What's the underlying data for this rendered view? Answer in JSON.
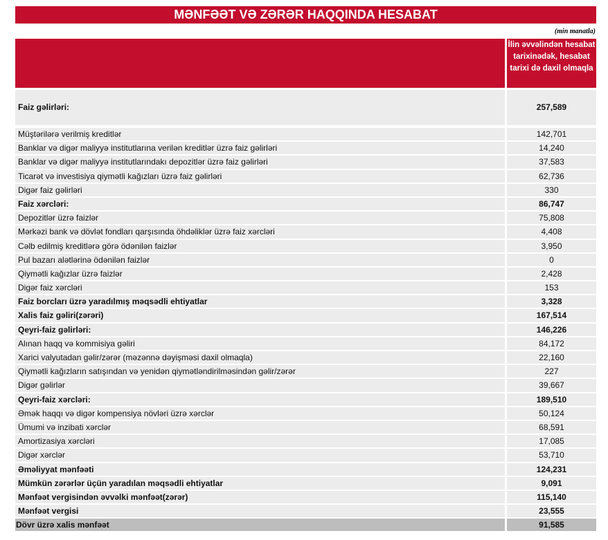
{
  "title": "MƏNFƏƏT VƏ ZƏRƏR HAQQINDA HESABAT",
  "unit": "(min manatla)",
  "column_header": "İlin əvvəlindən hesabat tarixinədək, hesabat tarixi də daxil olmaqla",
  "rows": [
    {
      "label": "Faiz gəlirləri:",
      "value": "257,589",
      "bold": true
    },
    {
      "label": "Müştərilərə verilmiş kreditlər",
      "value": "142,701",
      "bold": false
    },
    {
      "label": "Banklar və digər maliyyə institutlarına verilən kreditlər üzrə faiz gəlirləri",
      "value": "14,240",
      "bold": false
    },
    {
      "label": "Banklar və digər maliyyə institutlarındakı depozitlər üzrə faiz gəlirləri",
      "value": "37,583",
      "bold": false
    },
    {
      "label": "Ticarət və investisiya qiymətli kağızları üzrə faiz gəlirləri",
      "value": "62,736",
      "bold": false
    },
    {
      "label": "Digər faiz gəlirləri",
      "value": "330",
      "bold": false
    },
    {
      "label": "Faiz xərcləri:",
      "value": "86,747",
      "bold": true
    },
    {
      "label": "Depozitlər üzrə faizlər",
      "value": "75,808",
      "bold": false
    },
    {
      "label": "Mərkəzi bank və dövlət fondları qarşısında öhdəliklər üzrə faiz xərcləri",
      "value": "4,408",
      "bold": false
    },
    {
      "label": "Cəlb edilmiş kreditlərə görə ödənilən faizlər",
      "value": "3,950",
      "bold": false
    },
    {
      "label": "Pul bazarı alətlərinə ödənilən faizlər",
      "value": "0",
      "bold": false
    },
    {
      "label": "Qiymətli kağızlar üzrə faizlər",
      "value": "2,428",
      "bold": false
    },
    {
      "label": "Digər faiz xərcləri",
      "value": "153",
      "bold": false
    },
    {
      "label": "Faiz borcları üzrə yaradılmış məqsədli ehtiyatlar",
      "value": "3,328",
      "bold": true
    },
    {
      "label": "Xalis faiz gəliri(zərəri)",
      "value": "167,514",
      "bold": true
    },
    {
      "label": "Qeyri-faiz gəlirləri:",
      "value": "146,226",
      "bold": true
    },
    {
      "label": "Alınan haqq və kommisiya gəliri",
      "value": "84,172",
      "bold": false
    },
    {
      "label": "Xarici valyutadan gəlir/zərər (məzənnə dəyişməsi daxil olmaqla)",
      "value": "22,160",
      "bold": false
    },
    {
      "label": " Qiymətli kağızların satışından və yenidən qiymətləndirilməsindən gəlir/zərər",
      "value": "227",
      "bold": false
    },
    {
      "label": "Digər gəlirlər",
      "value": "39,667",
      "bold": false
    },
    {
      "label": "Qeyri-faiz xərcləri:",
      "value": "189,510",
      "bold": true
    },
    {
      "label": "Əmək haqqı və digər kompensiya növləri üzrə xərclər",
      "value": "50,124",
      "bold": false
    },
    {
      "label": "Ümumi və inzibati xərclər",
      "value": "68,591",
      "bold": false
    },
    {
      "label": "Amortizasiya xərcləri",
      "value": "17,085",
      "bold": false
    },
    {
      "label": "Digər xərclər",
      "value": "53,710",
      "bold": false
    },
    {
      "label": "Əməliyyat mənfəəti",
      "value": "124,231",
      "bold": true
    },
    {
      "label": "Mümkün zərərlər üçün yaradılan məqsədli ehtiyatlar",
      "value": "9,091",
      "bold": true
    },
    {
      "label": "Mənfəət vergisindən əvvəlki mənfəət(zərər)",
      "value": "115,140",
      "bold": true
    },
    {
      "label": "Mənfəət vergisi",
      "value": "23,555",
      "bold": true
    },
    {
      "label": "Dövr üzrə xalis mənfəət",
      "value": "91,585",
      "bold": true,
      "total": true
    }
  ]
}
